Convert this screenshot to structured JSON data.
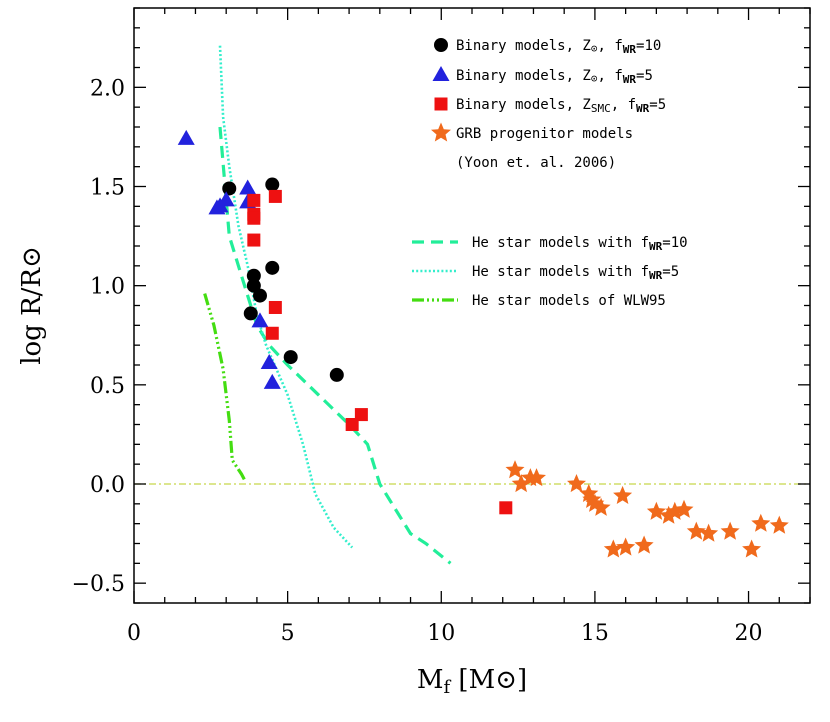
{
  "chart_data": {
    "type": "scatter",
    "xlabel": "M_f [M_sun]",
    "ylabel": "log R/R_sun",
    "xlim": [
      0,
      22
    ],
    "ylim": [
      -0.6,
      2.4
    ],
    "x_ticks": [
      0,
      5,
      10,
      15,
      20
    ],
    "y_ticks": [
      -0.5,
      0.0,
      0.5,
      1.0,
      1.5,
      2.0
    ],
    "x_tick_labels": [
      "0",
      "5",
      "10",
      "15",
      "20"
    ],
    "y_tick_labels": [
      "−0.5",
      "0.0",
      "0.5",
      "1.0",
      "1.5",
      "2.0"
    ],
    "grid": false,
    "legend_position": "top-right",
    "reference_line": {
      "y": 0.0,
      "style": "dash-dot",
      "color": "#c8d84a"
    },
    "series": [
      {
        "name": "Binary models, Z⊙, fWR=10",
        "label_parts": [
          "Binary models, Z",
          "⊙",
          ", f",
          "WR",
          "=10"
        ],
        "marker": "circle",
        "color": "#000000",
        "points": [
          [
            3.1,
            1.49
          ],
          [
            4.5,
            1.51
          ],
          [
            3.9,
            1.05
          ],
          [
            4.5,
            1.09
          ],
          [
            3.9,
            1.0
          ],
          [
            4.1,
            0.95
          ],
          [
            3.8,
            0.86
          ],
          [
            5.1,
            0.64
          ],
          [
            6.6,
            0.55
          ]
        ]
      },
      {
        "name": "Binary models, Z⊙, fWR=5",
        "label_parts": [
          "Binary models, Z",
          "⊙",
          ", f",
          "WR",
          "=5"
        ],
        "marker": "triangle",
        "color": "#2222dd",
        "points": [
          [
            1.7,
            1.74
          ],
          [
            2.7,
            1.39
          ],
          [
            2.8,
            1.4
          ],
          [
            3.0,
            1.43
          ],
          [
            3.7,
            1.49
          ],
          [
            3.7,
            1.42
          ],
          [
            4.1,
            0.82
          ],
          [
            4.4,
            0.61
          ],
          [
            4.5,
            0.51
          ]
        ]
      },
      {
        "name": "Binary models, ZSMC, fWR=5",
        "label_parts": [
          "Binary models, Z",
          "SMC",
          ", f",
          "WR",
          "=5"
        ],
        "marker": "square",
        "color": "#ee1111",
        "points": [
          [
            4.6,
            1.45
          ],
          [
            3.9,
            1.43
          ],
          [
            3.9,
            1.36
          ],
          [
            3.9,
            1.34
          ],
          [
            3.9,
            1.23
          ],
          [
            4.6,
            0.89
          ],
          [
            4.5,
            0.76
          ],
          [
            7.4,
            0.35
          ],
          [
            7.1,
            0.3
          ],
          [
            12.1,
            -0.12
          ]
        ]
      },
      {
        "name": "GRB progenitor models",
        "label_parts": [
          "GRB progenitor models"
        ],
        "sublabel": "(Yoon et. al. 2006)",
        "marker": "star",
        "color": "#f06a1c",
        "points": [
          [
            12.4,
            0.07
          ],
          [
            12.6,
            0.0
          ],
          [
            12.9,
            0.03
          ],
          [
            13.1,
            0.03
          ],
          [
            14.4,
            0.0
          ],
          [
            14.8,
            -0.05
          ],
          [
            14.9,
            -0.08
          ],
          [
            15.0,
            -0.1
          ],
          [
            15.2,
            -0.12
          ],
          [
            15.9,
            -0.06
          ],
          [
            15.6,
            -0.33
          ],
          [
            16.0,
            -0.32
          ],
          [
            16.6,
            -0.31
          ],
          [
            17.0,
            -0.14
          ],
          [
            17.4,
            -0.16
          ],
          [
            17.6,
            -0.14
          ],
          [
            17.9,
            -0.13
          ],
          [
            18.3,
            -0.24
          ],
          [
            18.7,
            -0.25
          ],
          [
            19.4,
            -0.24
          ],
          [
            20.1,
            -0.33
          ],
          [
            20.4,
            -0.2
          ],
          [
            21.0,
            -0.21
          ]
        ]
      },
      {
        "name": "He star models with fWR=10",
        "label_parts": [
          "He star models with f",
          "WR",
          "=10"
        ],
        "marker": "line",
        "line_style": "dashed",
        "color": "#22ee99",
        "points": [
          [
            2.8,
            1.8
          ],
          [
            3.1,
            1.25
          ],
          [
            3.5,
            1.05
          ],
          [
            4.0,
            0.8
          ],
          [
            4.4,
            0.7
          ],
          [
            5.0,
            0.6
          ],
          [
            6.0,
            0.45
          ],
          [
            7.0,
            0.3
          ],
          [
            7.6,
            0.2
          ],
          [
            8.0,
            0.0
          ],
          [
            9.0,
            -0.25
          ],
          [
            9.5,
            -0.3
          ],
          [
            10.3,
            -0.4
          ]
        ]
      },
      {
        "name": "He star models with fWR=5",
        "label_parts": [
          "He star models with f",
          "WR",
          "=5"
        ],
        "marker": "line",
        "line_style": "dotted",
        "color": "#33eecc",
        "points": [
          [
            2.8,
            2.21
          ],
          [
            2.9,
            1.85
          ],
          [
            3.1,
            1.6
          ],
          [
            3.4,
            1.3
          ],
          [
            3.7,
            1.1
          ],
          [
            4.0,
            0.85
          ],
          [
            4.3,
            0.7
          ],
          [
            5.0,
            0.45
          ],
          [
            5.5,
            0.2
          ],
          [
            5.9,
            -0.05
          ],
          [
            6.5,
            -0.22
          ],
          [
            7.1,
            -0.32
          ]
        ]
      },
      {
        "name": "He star models of WLW95",
        "label_parts": [
          "He star models of WLW95"
        ],
        "marker": "line",
        "line_style": "dash-dot",
        "color": "#44dd11",
        "points": [
          [
            2.3,
            0.96
          ],
          [
            2.6,
            0.8
          ],
          [
            2.9,
            0.58
          ],
          [
            3.1,
            0.32
          ],
          [
            3.2,
            0.12
          ],
          [
            3.5,
            0.05
          ],
          [
            3.6,
            0.02
          ]
        ]
      }
    ]
  }
}
